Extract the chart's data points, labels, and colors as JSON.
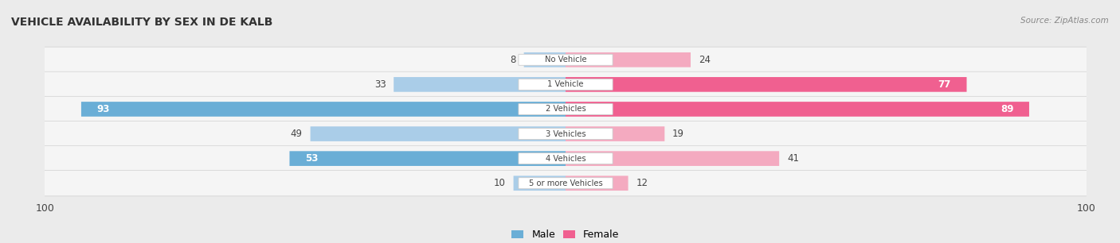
{
  "title": "VEHICLE AVAILABILITY BY SEX IN DE KALB",
  "source": "Source: ZipAtlas.com",
  "categories": [
    "No Vehicle",
    "1 Vehicle",
    "2 Vehicles",
    "3 Vehicles",
    "4 Vehicles",
    "5 or more Vehicles"
  ],
  "male_values": [
    8,
    33,
    93,
    49,
    53,
    10
  ],
  "female_values": [
    24,
    77,
    89,
    19,
    41,
    12
  ],
  "male_color_strong": "#6aaed6",
  "male_color_light": "#aacde8",
  "female_color_strong": "#f06090",
  "female_color_light": "#f4aac0",
  "axis_max": 100,
  "background_color": "#ebebeb",
  "row_bg_color": "#f5f5f5",
  "label_color": "#444444",
  "title_color": "#333333",
  "strong_threshold": 50
}
